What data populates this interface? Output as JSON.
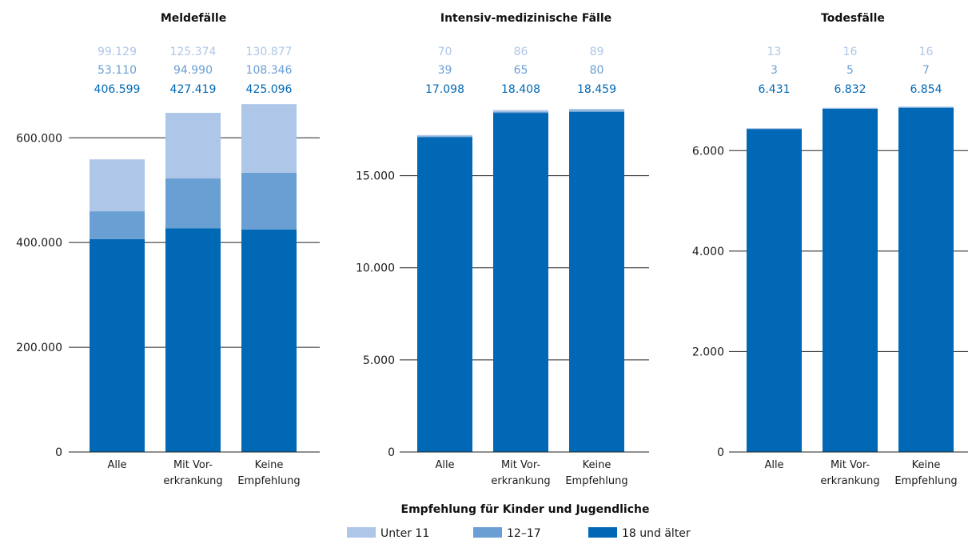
{
  "legend": {
    "title": "Empfehlung für Kinder und Jugendliche",
    "items": [
      {
        "label": "Unter 11",
        "color": "#aec6e8"
      },
      {
        "label": "12–17",
        "color": "#6a9fd4"
      },
      {
        "label": "18 und älter",
        "color": "#0068b4"
      }
    ]
  },
  "chart_data": [
    {
      "type": "bar",
      "stacked": true,
      "title": "Meldefälle",
      "categories": [
        [
          "Alle"
        ],
        [
          "Mit Vor-",
          "erkrankung"
        ],
        [
          "Keine",
          "Empfehlung"
        ]
      ],
      "series": [
        {
          "name": "18 und älter",
          "values": [
            406599,
            427419,
            425096
          ],
          "labels": [
            "406.599",
            "427.419",
            "425.096"
          ]
        },
        {
          "name": "12–17",
          "values": [
            53110,
            94990,
            108346
          ],
          "labels": [
            "53.110",
            "94.990",
            "108.346"
          ]
        },
        {
          "name": "Unter 11",
          "values": [
            99129,
            125374,
            130877
          ],
          "labels": [
            "99.129",
            "125.374",
            "130.877"
          ]
        }
      ],
      "ylim": [
        0,
        660000
      ],
      "yticks": [
        0,
        200000,
        400000,
        600000
      ],
      "ytick_labels": [
        "0",
        "200.000",
        "400.000",
        "600.000"
      ]
    },
    {
      "type": "bar",
      "stacked": true,
      "title": "Intensiv-medizinische Fälle",
      "categories": [
        [
          "Alle"
        ],
        [
          "Mit Vor-",
          "erkrankung"
        ],
        [
          "Keine",
          "Empfehlung"
        ]
      ],
      "series": [
        {
          "name": "18 und älter",
          "values": [
            17098,
            18408,
            18459
          ],
          "labels": [
            "17.098",
            "18.408",
            "18.459"
          ]
        },
        {
          "name": "12–17",
          "values": [
            39,
            65,
            80
          ],
          "labels": [
            "39",
            "65",
            "80"
          ]
        },
        {
          "name": "Unter 11",
          "values": [
            70,
            86,
            89
          ],
          "labels": [
            "70",
            "86",
            "89"
          ]
        }
      ],
      "ylim": [
        0,
        18760
      ],
      "yticks": [
        0,
        5000,
        10000,
        15000
      ],
      "ytick_labels": [
        "0",
        "5.000",
        "10.000",
        "15.000"
      ]
    },
    {
      "type": "bar",
      "stacked": true,
      "title": "Todesfälle",
      "categories": [
        [
          "Alle"
        ],
        [
          "Mit Vor-",
          "erkrankung"
        ],
        [
          "Keine",
          "Empfehlung"
        ]
      ],
      "series": [
        {
          "name": "18 und älter",
          "values": [
            6431,
            6832,
            6854
          ],
          "labels": [
            "6.431",
            "6.832",
            "6.854"
          ]
        },
        {
          "name": "12–17",
          "values": [
            3,
            5,
            7
          ],
          "labels": [
            "3",
            "5",
            "7"
          ]
        },
        {
          "name": "Unter 11",
          "values": [
            13,
            16,
            16
          ],
          "labels": [
            "13",
            "16",
            "16"
          ]
        }
      ],
      "ylim": [
        0,
        6880
      ],
      "yticks": [
        0,
        2000,
        4000,
        6000
      ],
      "ytick_labels": [
        "0",
        "2.000",
        "4.000",
        "6.000"
      ]
    }
  ]
}
